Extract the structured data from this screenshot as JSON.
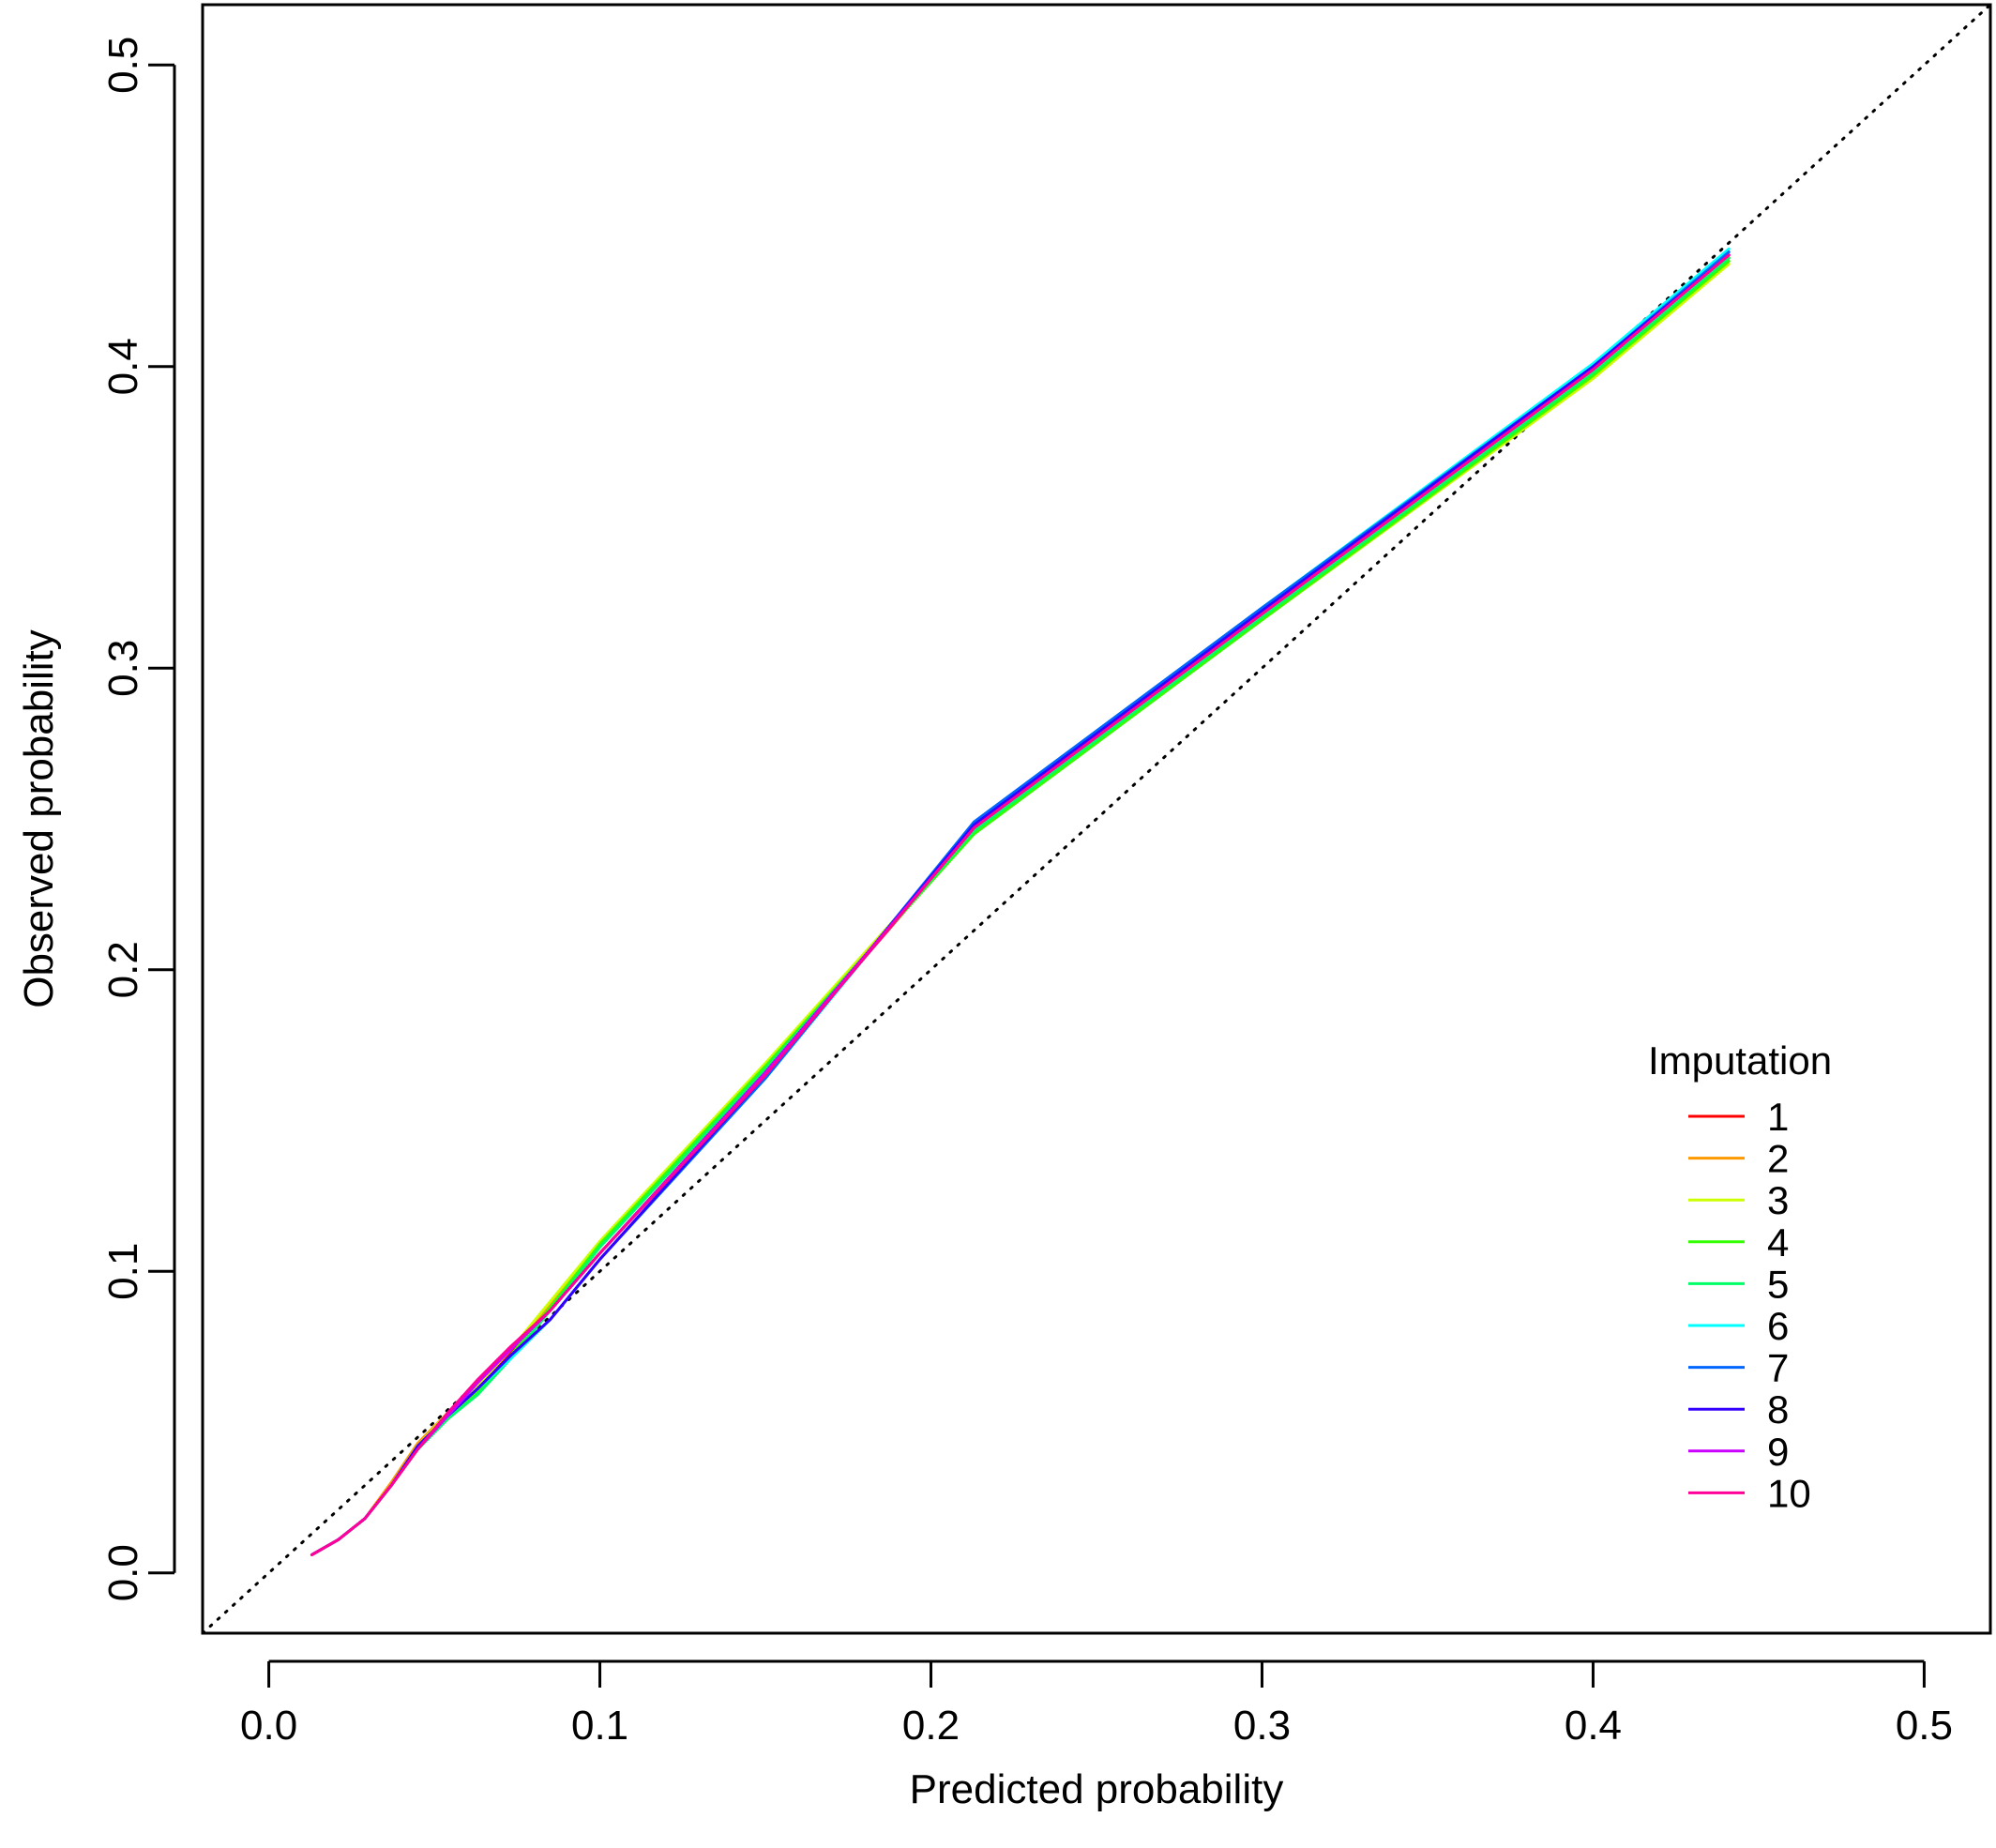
{
  "chart_data": {
    "type": "line",
    "title": "",
    "xlabel": "Predicted probability",
    "ylabel": "Observed probability",
    "xlim": [
      -0.02,
      0.52
    ],
    "ylim": [
      -0.02,
      0.52
    ],
    "xticks": [
      0.0,
      0.1,
      0.2,
      0.3,
      0.4,
      0.5
    ],
    "yticks": [
      0.0,
      0.1,
      0.2,
      0.3,
      0.4,
      0.5
    ],
    "xtick_labels": [
      "0.0",
      "0.1",
      "0.2",
      "0.3",
      "0.4",
      "0.5"
    ],
    "ytick_labels": [
      "0.0",
      "0.1",
      "0.2",
      "0.3",
      "0.4",
      "0.5"
    ],
    "grid": false,
    "reference_line": {
      "style": "dotted",
      "color": "#000000",
      "from": [
        -0.02,
        -0.02
      ],
      "to": [
        0.52,
        0.52
      ]
    },
    "legend": {
      "title": "Imputation",
      "position": "bottom-right"
    },
    "series": [
      {
        "name": "1",
        "color": "#FF0000",
        "x": [
          0.013,
          0.021,
          0.029,
          0.037,
          0.045,
          0.054,
          0.063,
          0.073,
          0.085,
          0.1,
          0.15,
          0.213,
          0.3,
          0.4,
          0.441
        ],
        "y": [
          0.006,
          0.011,
          0.018,
          0.029,
          0.042,
          0.052,
          0.062,
          0.073,
          0.087,
          0.106,
          0.166,
          0.246,
          0.317,
          0.398,
          0.436
        ]
      },
      {
        "name": "2",
        "color": "#FF9900",
        "x": [
          0.013,
          0.021,
          0.029,
          0.037,
          0.045,
          0.054,
          0.063,
          0.073,
          0.085,
          0.1,
          0.15,
          0.213,
          0.3,
          0.4,
          0.441
        ],
        "y": [
          0.006,
          0.011,
          0.018,
          0.03,
          0.043,
          0.053,
          0.062,
          0.074,
          0.089,
          0.109,
          0.168,
          0.246,
          0.318,
          0.398,
          0.436
        ]
      },
      {
        "name": "3",
        "color": "#CCFF00",
        "x": [
          0.013,
          0.021,
          0.029,
          0.037,
          0.045,
          0.054,
          0.063,
          0.073,
          0.085,
          0.1,
          0.15,
          0.213,
          0.3,
          0.4,
          0.441
        ],
        "y": [
          0.006,
          0.011,
          0.018,
          0.029,
          0.042,
          0.053,
          0.062,
          0.074,
          0.09,
          0.11,
          0.169,
          0.246,
          0.316,
          0.396,
          0.434
        ]
      },
      {
        "name": "4",
        "color": "#33FF00",
        "x": [
          0.013,
          0.021,
          0.029,
          0.037,
          0.045,
          0.054,
          0.063,
          0.073,
          0.085,
          0.1,
          0.15,
          0.213,
          0.3,
          0.4,
          0.441
        ],
        "y": [
          0.006,
          0.011,
          0.018,
          0.029,
          0.041,
          0.051,
          0.06,
          0.072,
          0.088,
          0.109,
          0.168,
          0.245,
          0.316,
          0.397,
          0.435
        ]
      },
      {
        "name": "5",
        "color": "#00FF66",
        "x": [
          0.013,
          0.021,
          0.029,
          0.037,
          0.045,
          0.054,
          0.063,
          0.073,
          0.085,
          0.1,
          0.15,
          0.213,
          0.3,
          0.4,
          0.441
        ],
        "y": [
          0.006,
          0.011,
          0.018,
          0.029,
          0.041,
          0.051,
          0.059,
          0.071,
          0.087,
          0.108,
          0.167,
          0.246,
          0.317,
          0.398,
          0.436
        ]
      },
      {
        "name": "6",
        "color": "#00FFFF",
        "x": [
          0.013,
          0.021,
          0.029,
          0.037,
          0.045,
          0.054,
          0.063,
          0.073,
          0.085,
          0.1,
          0.15,
          0.213,
          0.3,
          0.4,
          0.441
        ],
        "y": [
          0.006,
          0.011,
          0.018,
          0.029,
          0.042,
          0.052,
          0.061,
          0.071,
          0.084,
          0.104,
          0.164,
          0.248,
          0.32,
          0.401,
          0.439
        ]
      },
      {
        "name": "7",
        "color": "#0066FF",
        "x": [
          0.013,
          0.021,
          0.029,
          0.037,
          0.045,
          0.054,
          0.063,
          0.073,
          0.085,
          0.1,
          0.15,
          0.213,
          0.3,
          0.4,
          0.441
        ],
        "y": [
          0.006,
          0.011,
          0.018,
          0.029,
          0.042,
          0.052,
          0.061,
          0.072,
          0.084,
          0.104,
          0.164,
          0.249,
          0.32,
          0.4,
          0.438
        ]
      },
      {
        "name": "8",
        "color": "#3300FF",
        "x": [
          0.013,
          0.021,
          0.029,
          0.037,
          0.045,
          0.054,
          0.063,
          0.073,
          0.085,
          0.1,
          0.15,
          0.213,
          0.3,
          0.4,
          0.441
        ],
        "y": [
          0.006,
          0.011,
          0.018,
          0.029,
          0.042,
          0.052,
          0.061,
          0.072,
          0.084,
          0.104,
          0.165,
          0.248,
          0.319,
          0.4,
          0.437
        ]
      },
      {
        "name": "9",
        "color": "#CC00FF",
        "x": [
          0.013,
          0.021,
          0.029,
          0.037,
          0.045,
          0.054,
          0.063,
          0.073,
          0.085,
          0.1,
          0.15,
          0.213,
          0.3,
          0.4,
          0.441
        ],
        "y": [
          0.006,
          0.011,
          0.018,
          0.029,
          0.041,
          0.052,
          0.063,
          0.074,
          0.087,
          0.106,
          0.166,
          0.247,
          0.318,
          0.399,
          0.437
        ]
      },
      {
        "name": "10",
        "color": "#FF0099",
        "x": [
          0.013,
          0.021,
          0.029,
          0.037,
          0.045,
          0.054,
          0.063,
          0.073,
          0.085,
          0.1,
          0.15,
          0.213,
          0.3,
          0.4,
          0.441
        ],
        "y": [
          0.006,
          0.011,
          0.018,
          0.029,
          0.041,
          0.053,
          0.064,
          0.075,
          0.087,
          0.106,
          0.165,
          0.247,
          0.318,
          0.399,
          0.437
        ]
      }
    ]
  }
}
